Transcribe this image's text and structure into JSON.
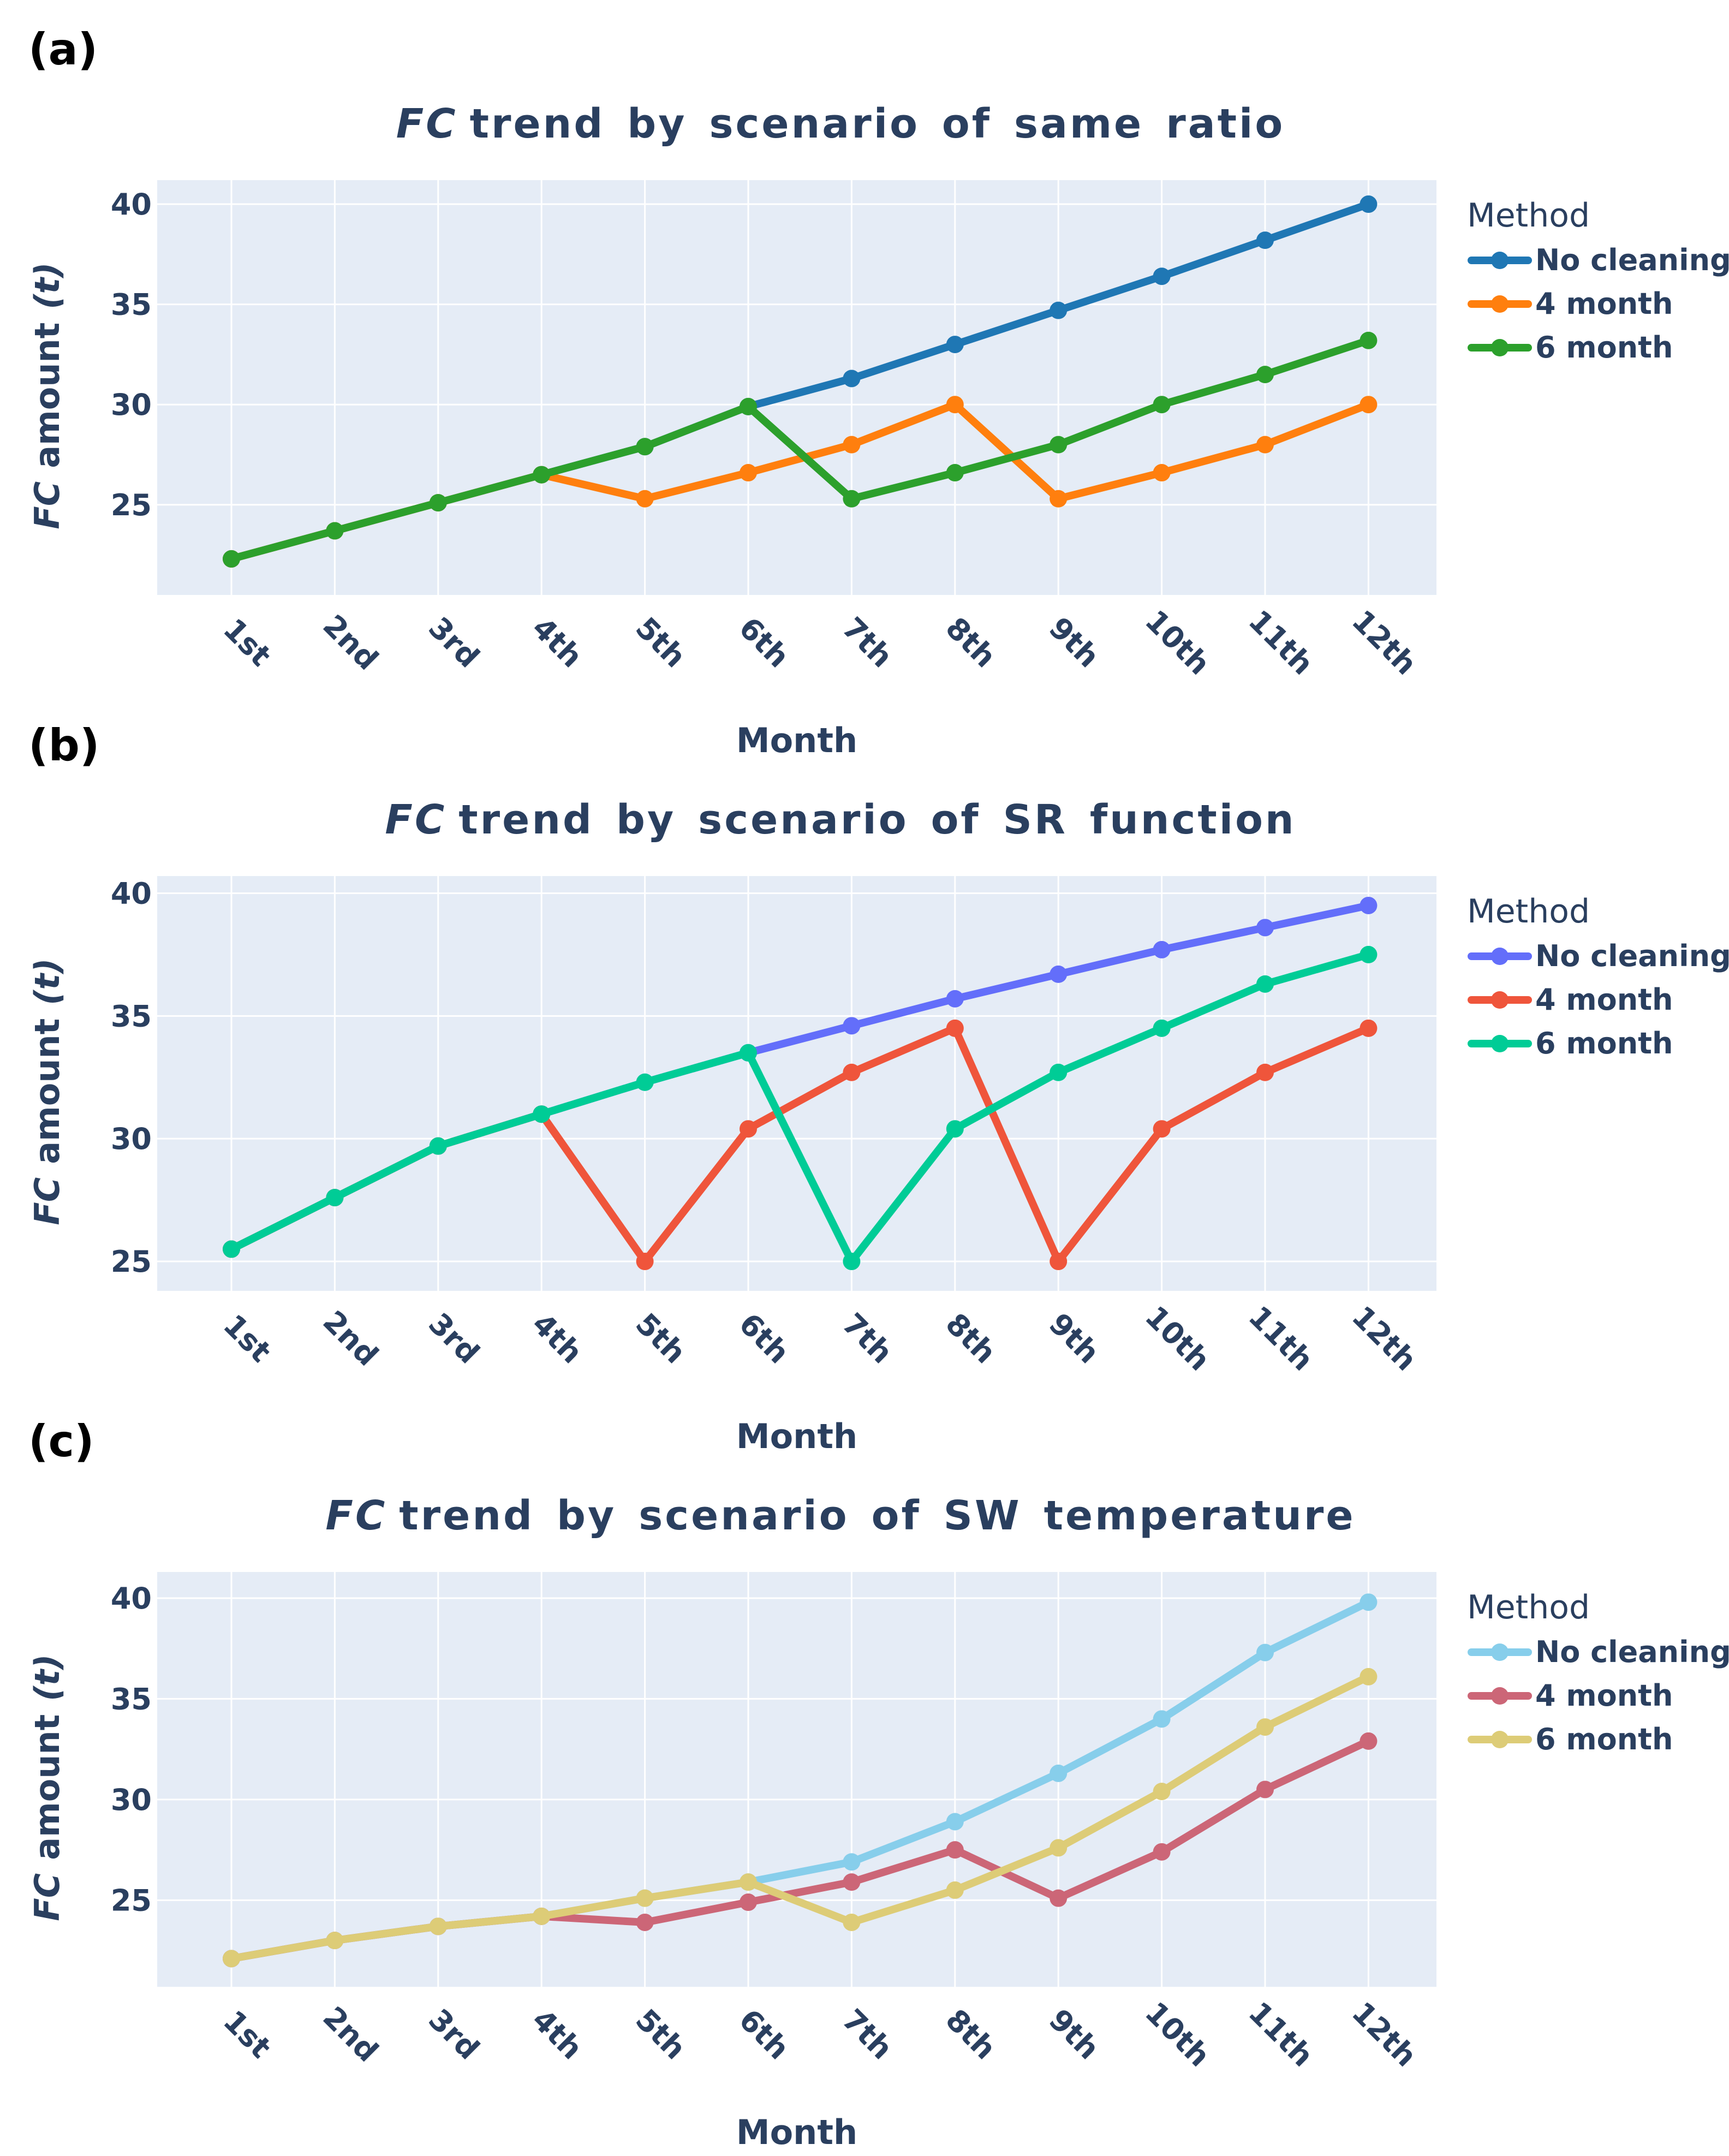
{
  "chart_data": [
    {
      "panel_label": "(a)",
      "type": "line",
      "title_italic": "FC",
      "title_rest": "trend by scenario of same ratio",
      "xlabel": "Month",
      "ylabel_italic_1": "FC",
      "ylabel_mid": "amount",
      "ylabel_italic_2": "(t)",
      "ylim": [
        20.5,
        41.2
      ],
      "yticks": [
        25,
        30,
        35,
        40
      ],
      "categories": [
        "1st",
        "2nd",
        "3rd",
        "4th",
        "5th",
        "6th",
        "7th",
        "8th",
        "9th",
        "10th",
        "11th",
        "12th"
      ],
      "legend_title": "Method",
      "series": [
        {
          "name": "No cleaning",
          "color": "#1f77b4",
          "values": [
            22.3,
            23.7,
            25.1,
            26.5,
            27.9,
            29.9,
            31.3,
            33.0,
            34.7,
            36.4,
            38.2,
            40.0
          ]
        },
        {
          "name": "4 month",
          "color": "#ff7f0e",
          "values": [
            22.3,
            23.7,
            25.1,
            26.5,
            25.3,
            26.6,
            28.0,
            30.0,
            25.3,
            26.6,
            28.0,
            30.0
          ]
        },
        {
          "name": "6 month",
          "color": "#2ca02c",
          "values": [
            22.3,
            23.7,
            25.1,
            26.5,
            27.9,
            29.9,
            25.3,
            26.6,
            28.0,
            30.0,
            31.5,
            33.2
          ]
        }
      ]
    },
    {
      "panel_label": "(b)",
      "type": "line",
      "title_italic": "FC",
      "title_rest": "trend by scenario of SR function",
      "xlabel": "Month",
      "ylabel_italic_1": "FC",
      "ylabel_mid": "amount",
      "ylabel_italic_2": "(t)",
      "ylim": [
        23.8,
        40.7
      ],
      "yticks": [
        25,
        30,
        35,
        40
      ],
      "categories": [
        "1st",
        "2nd",
        "3rd",
        "4th",
        "5th",
        "6th",
        "7th",
        "8th",
        "9th",
        "10th",
        "11th",
        "12th"
      ],
      "legend_title": "Method",
      "series": [
        {
          "name": "No cleaning",
          "color": "#636efa",
          "values": [
            25.5,
            27.6,
            29.7,
            31.0,
            32.3,
            33.5,
            34.6,
            35.7,
            36.7,
            37.7,
            38.6,
            39.5
          ]
        },
        {
          "name": "4 month",
          "color": "#ef553b",
          "values": [
            25.5,
            27.6,
            29.7,
            31.0,
            25.0,
            30.4,
            32.7,
            34.5,
            25.0,
            30.4,
            32.7,
            34.5
          ]
        },
        {
          "name": "6 month",
          "color": "#00cc96",
          "values": [
            25.5,
            27.6,
            29.7,
            31.0,
            32.3,
            33.5,
            25.0,
            30.4,
            32.7,
            34.5,
            36.3,
            37.5
          ]
        }
      ]
    },
    {
      "panel_label": "(c)",
      "type": "line",
      "title_italic": "FC",
      "title_rest": "trend by scenario of SW temperature",
      "xlabel": "Month",
      "ylabel_italic_1": "FC",
      "ylabel_mid": "amount",
      "ylabel_italic_2": "(t)",
      "ylim": [
        20.7,
        41.3
      ],
      "yticks": [
        25,
        30,
        35,
        40
      ],
      "categories": [
        "1st",
        "2nd",
        "3rd",
        "4th",
        "5th",
        "6th",
        "7th",
        "8th",
        "9th",
        "10th",
        "11th",
        "12th"
      ],
      "legend_title": "Method",
      "series": [
        {
          "name": "No cleaning",
          "color": "#87ceeb",
          "values": [
            22.1,
            23.0,
            23.7,
            24.2,
            25.1,
            25.9,
            26.9,
            28.9,
            31.3,
            34.0,
            37.3,
            39.8
          ]
        },
        {
          "name": "4 month",
          "color": "#cc6677",
          "values": [
            22.1,
            23.0,
            23.7,
            24.2,
            23.9,
            24.9,
            25.9,
            27.5,
            25.1,
            27.4,
            30.5,
            32.9
          ]
        },
        {
          "name": "6 month",
          "color": "#ddcc77",
          "values": [
            22.1,
            23.0,
            23.7,
            24.2,
            25.1,
            25.9,
            23.9,
            25.5,
            27.6,
            30.4,
            33.6,
            36.1
          ]
        }
      ]
    }
  ]
}
